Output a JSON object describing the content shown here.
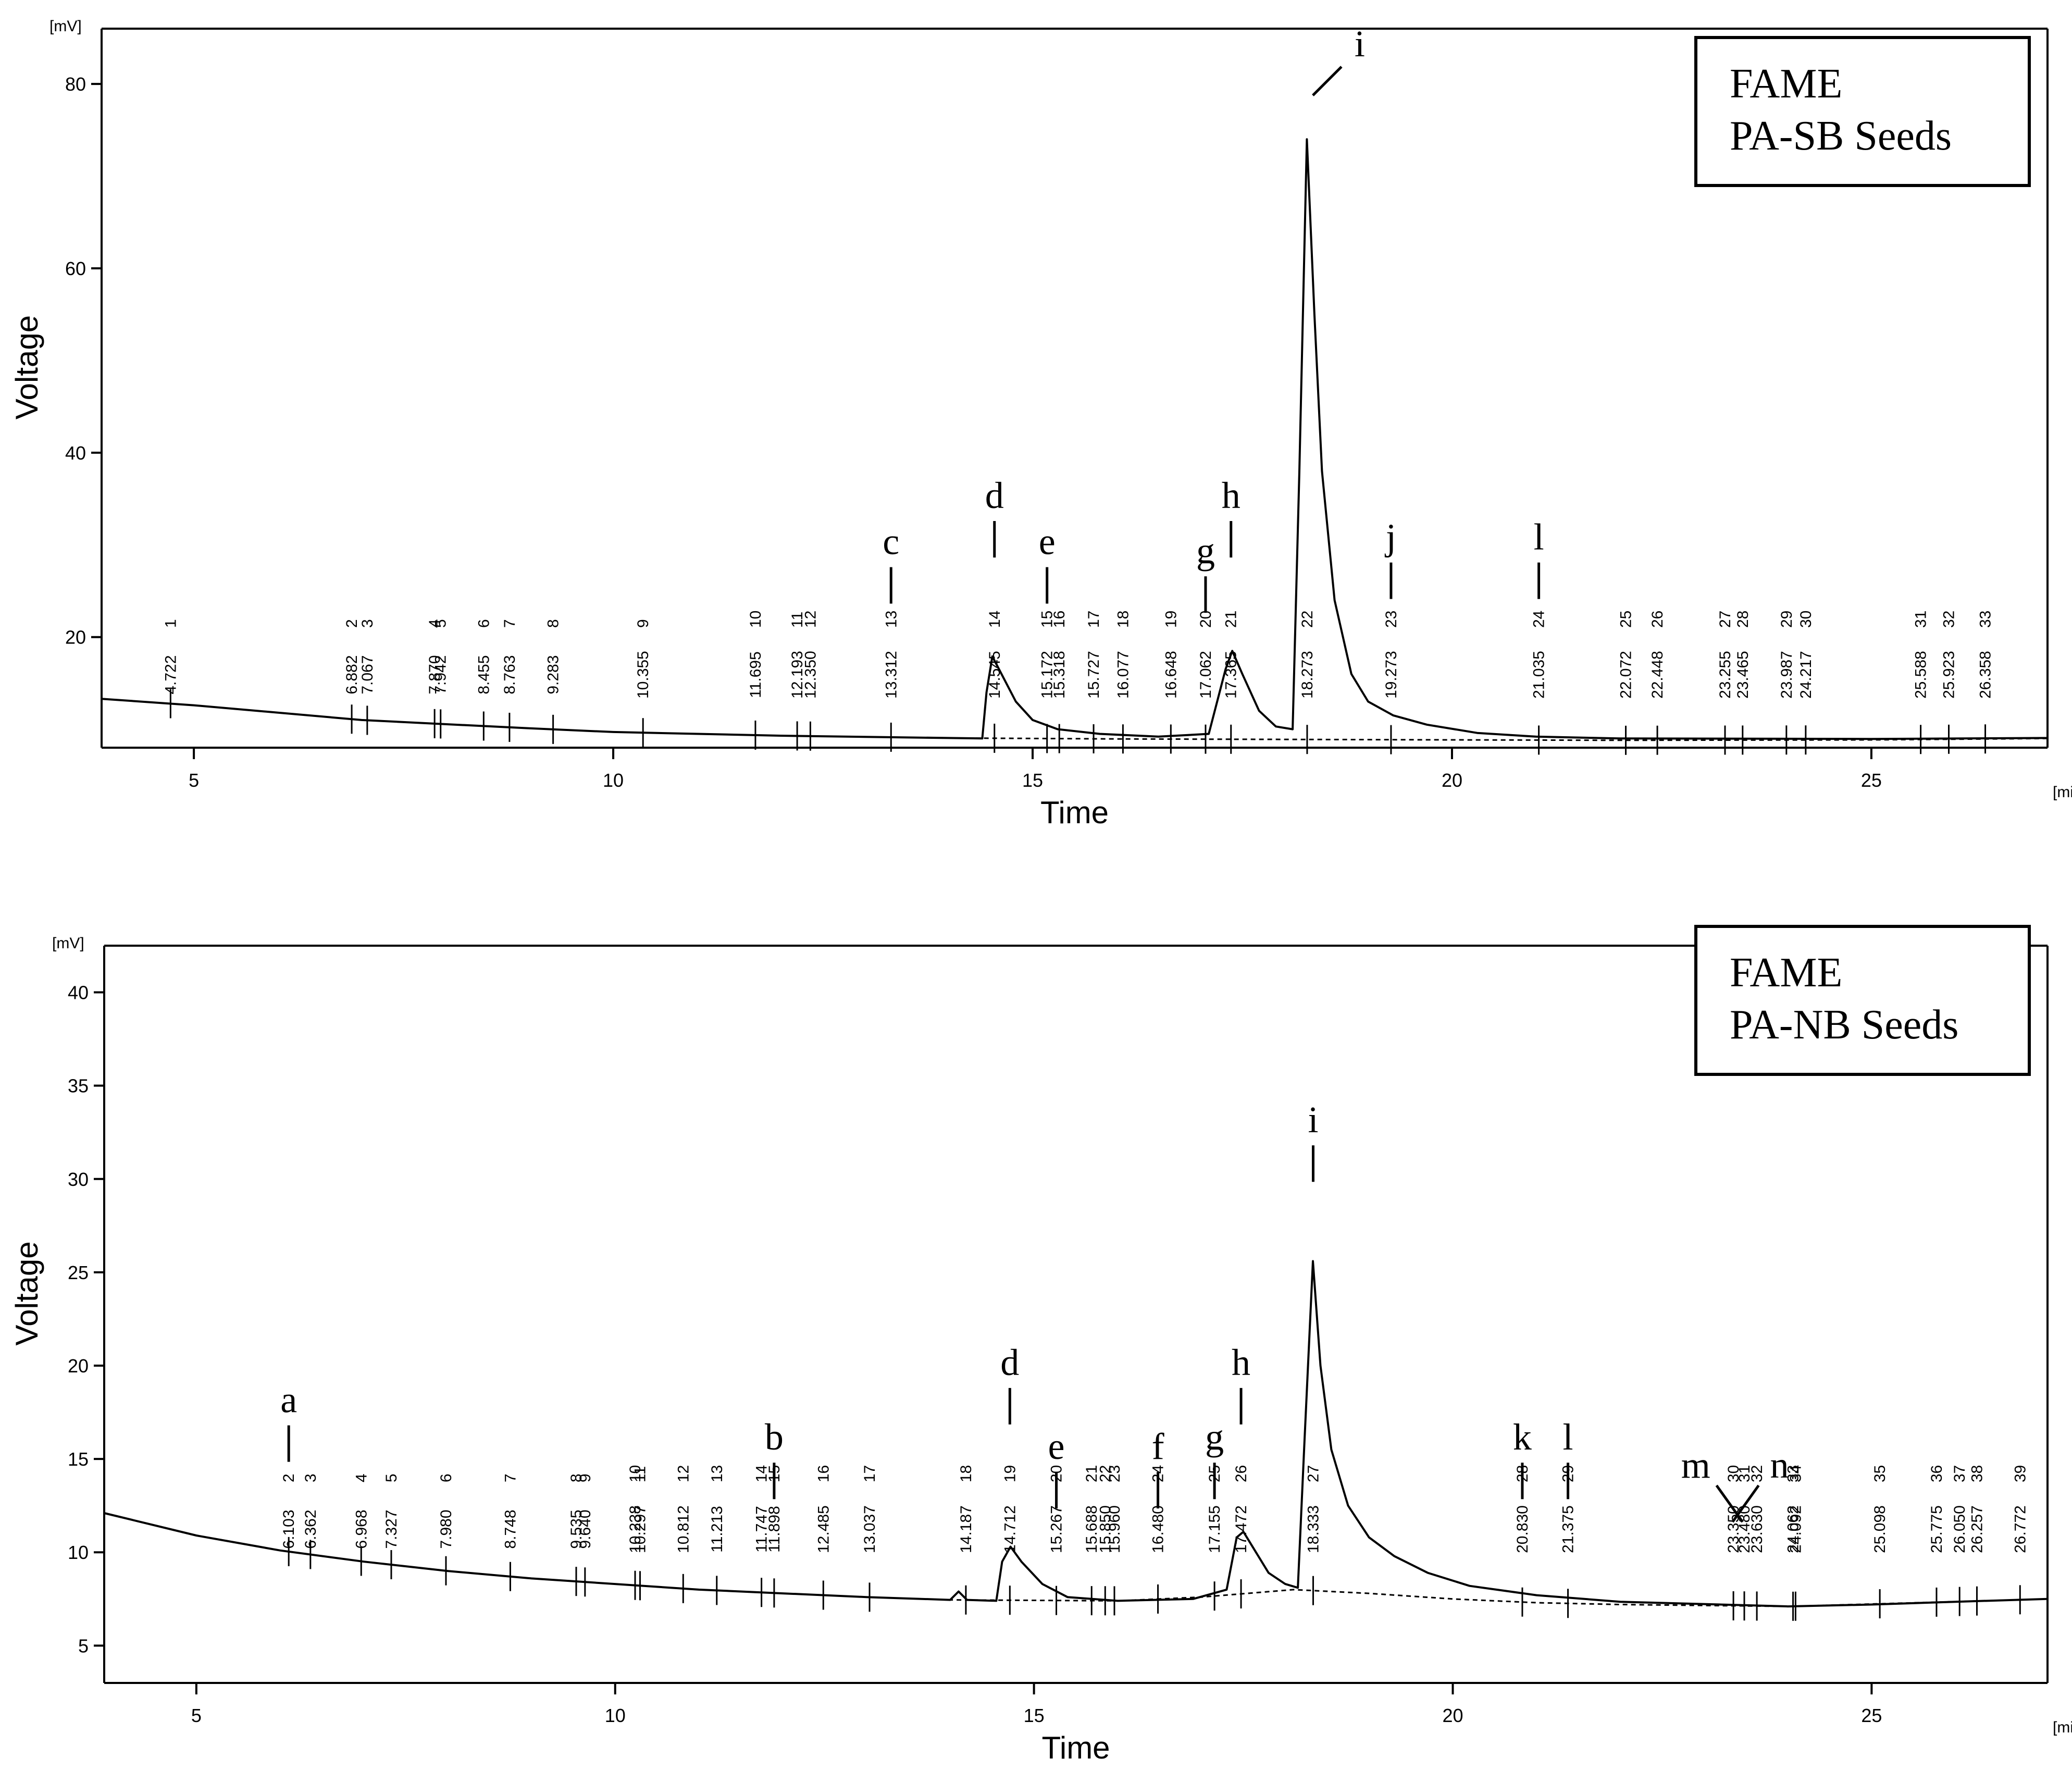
{
  "chart_data": [
    {
      "type": "line",
      "name": "chromatogram-pa-sb",
      "legend": {
        "line1": "FAME",
        "line2": "PA-SB Seeds"
      },
      "xlabel": "Time",
      "ylabel": "Voltage",
      "xunit": "[min.]",
      "yunit": "[mV]",
      "xlim": [
        3.9,
        27.1
      ],
      "ylim": [
        8,
        86
      ],
      "xticks": [
        5,
        10,
        15,
        20,
        25
      ],
      "yticks": [
        20,
        40,
        60,
        80
      ],
      "baseline": [
        [
          3.9,
          13.3
        ],
        [
          5,
          12.6
        ],
        [
          7,
          11.0
        ],
        [
          9,
          10.1
        ],
        [
          10,
          9.7
        ],
        [
          12,
          9.3
        ],
        [
          14,
          9.05
        ],
        [
          16,
          8.95
        ],
        [
          18,
          8.9
        ],
        [
          20,
          8.85
        ],
        [
          22,
          8.8
        ],
        [
          25,
          8.85
        ],
        [
          27.1,
          9.0
        ]
      ],
      "trace": [
        [
          3.9,
          13.3
        ],
        [
          5,
          12.6
        ],
        [
          7,
          11.0
        ],
        [
          9,
          10.1
        ],
        [
          10,
          9.7
        ],
        [
          12,
          9.3
        ],
        [
          14,
          9.05
        ],
        [
          14.4,
          9.0
        ],
        [
          14.45,
          14.0
        ],
        [
          14.52,
          17.9
        ],
        [
          14.6,
          16.5
        ],
        [
          14.8,
          13.0
        ],
        [
          15.0,
          11.0
        ],
        [
          15.3,
          10.0
        ],
        [
          15.8,
          9.5
        ],
        [
          16.5,
          9.2
        ],
        [
          17.1,
          9.5
        ],
        [
          17.3,
          16.5
        ],
        [
          17.38,
          18.5
        ],
        [
          17.5,
          16.0
        ],
        [
          17.7,
          12.0
        ],
        [
          17.9,
          10.3
        ],
        [
          18.1,
          10.0
        ],
        [
          18.18,
          38.0
        ],
        [
          18.27,
          74.0
        ],
        [
          18.36,
          55.0
        ],
        [
          18.45,
          38.0
        ],
        [
          18.6,
          24.0
        ],
        [
          18.8,
          16.0
        ],
        [
          19.0,
          13.0
        ],
        [
          19.3,
          11.5
        ],
        [
          19.7,
          10.5
        ],
        [
          20.3,
          9.6
        ],
        [
          21,
          9.2
        ],
        [
          22,
          9.0
        ],
        [
          25,
          8.95
        ],
        [
          27.1,
          9.05
        ]
      ],
      "peaks": [
        {
          "n": "1",
          "rt": "4.722",
          "x": 4.722
        },
        {
          "n": "2",
          "rt": "6.882",
          "x": 6.882
        },
        {
          "n": "3",
          "rt": "7.067",
          "x": 7.067
        },
        {
          "n": "4",
          "rt": "7.870",
          "x": 7.87
        },
        {
          "n": "5",
          "rt": "7.942",
          "x": 7.942
        },
        {
          "n": "6",
          "rt": "8.455",
          "x": 8.455
        },
        {
          "n": "7",
          "rt": "8.763",
          "x": 8.763
        },
        {
          "n": "8",
          "rt": "9.283",
          "x": 9.283
        },
        {
          "n": "9",
          "rt": "10.355",
          "x": 10.355
        },
        {
          "n": "10",
          "rt": "11.695",
          "x": 11.695
        },
        {
          "n": "11",
          "rt": "12.193",
          "x": 12.193
        },
        {
          "n": "12",
          "rt": "12.350",
          "x": 12.35
        },
        {
          "n": "13",
          "rt": "13.312",
          "x": 13.312
        },
        {
          "n": "14",
          "rt": "14.545",
          "x": 14.545
        },
        {
          "n": "15",
          "rt": "15.172",
          "x": 15.172
        },
        {
          "n": "16",
          "rt": "15.318",
          "x": 15.318
        },
        {
          "n": "17",
          "rt": "15.727",
          "x": 15.727
        },
        {
          "n": "18",
          "rt": "16.077",
          "x": 16.077
        },
        {
          "n": "19",
          "rt": "16.648",
          "x": 16.648
        },
        {
          "n": "20",
          "rt": "17.062",
          "x": 17.062
        },
        {
          "n": "21",
          "rt": "17.365",
          "x": 17.365
        },
        {
          "n": "22",
          "rt": "18.273",
          "x": 18.273
        },
        {
          "n": "23",
          "rt": "19.273",
          "x": 19.273
        },
        {
          "n": "24",
          "rt": "21.035",
          "x": 21.035
        },
        {
          "n": "25",
          "rt": "22.072",
          "x": 22.072
        },
        {
          "n": "26",
          "rt": "22.448",
          "x": 22.448
        },
        {
          "n": "27",
          "rt": "23.255",
          "x": 23.255
        },
        {
          "n": "28",
          "rt": "23.465",
          "x": 23.465
        },
        {
          "n": "29",
          "rt": "23.987",
          "x": 23.987
        },
        {
          "n": "30",
          "rt": "24.217",
          "x": 24.217
        },
        {
          "n": "31",
          "rt": "25.588",
          "x": 25.588
        },
        {
          "n": "32",
          "rt": "25.923",
          "x": 25.923
        },
        {
          "n": "33",
          "rt": "26.358",
          "x": 26.358
        }
      ],
      "letters": [
        {
          "t": "c",
          "x": 13.312,
          "y": 29
        },
        {
          "t": "d",
          "x": 14.545,
          "y": 34
        },
        {
          "t": "e",
          "x": 15.172,
          "y": 29
        },
        {
          "t": "g",
          "x": 17.062,
          "y": 28
        },
        {
          "t": "h",
          "x": 17.365,
          "y": 34
        },
        {
          "t": "i",
          "x": 18.9,
          "y": 83
        },
        {
          "t": "j",
          "x": 19.273,
          "y": 29.5
        },
        {
          "t": "l",
          "x": 21.035,
          "y": 29.5
        }
      ]
    },
    {
      "type": "line",
      "name": "chromatogram-pa-nb",
      "legend": {
        "line1": "FAME",
        "line2": "PA-NB Seeds"
      },
      "xlabel": "Time",
      "ylabel": "Voltage",
      "xunit": "[min.]",
      "yunit": "[mV]",
      "xlim": [
        3.9,
        27.1
      ],
      "ylim": [
        3,
        42.5
      ],
      "xticks": [
        5,
        10,
        15,
        20,
        25
      ],
      "yticks": [
        5,
        10,
        15,
        20,
        25,
        30,
        35,
        40
      ],
      "baseline": [
        [
          3.9,
          12.1
        ],
        [
          5,
          10.9
        ],
        [
          6,
          10.1
        ],
        [
          7,
          9.5
        ],
        [
          8,
          9.0
        ],
        [
          9,
          8.6
        ],
        [
          10,
          8.3
        ],
        [
          11,
          8.0
        ],
        [
          12,
          7.8
        ],
        [
          13,
          7.6
        ],
        [
          14,
          7.45
        ],
        [
          16,
          7.4
        ],
        [
          17,
          7.6
        ],
        [
          18.1,
          8.0
        ],
        [
          19,
          7.8
        ],
        [
          20,
          7.5
        ],
        [
          21,
          7.3
        ],
        [
          22,
          7.2
        ],
        [
          24,
          7.1
        ],
        [
          27.1,
          7.5
        ]
      ],
      "trace": [
        [
          3.9,
          12.1
        ],
        [
          5,
          10.9
        ],
        [
          6,
          10.1
        ],
        [
          7,
          9.5
        ],
        [
          8,
          9.0
        ],
        [
          9,
          8.6
        ],
        [
          10,
          8.3
        ],
        [
          11,
          8.0
        ],
        [
          12,
          7.8
        ],
        [
          13,
          7.6
        ],
        [
          14,
          7.45
        ],
        [
          14.1,
          7.9
        ],
        [
          14.2,
          7.45
        ],
        [
          14.55,
          7.4
        ],
        [
          14.62,
          9.5
        ],
        [
          14.72,
          10.3
        ],
        [
          14.85,
          9.5
        ],
        [
          15.1,
          8.3
        ],
        [
          15.4,
          7.6
        ],
        [
          16,
          7.4
        ],
        [
          16.9,
          7.5
        ],
        [
          17.3,
          8.0
        ],
        [
          17.42,
          10.8
        ],
        [
          17.5,
          11.1
        ],
        [
          17.65,
          10.0
        ],
        [
          17.8,
          8.9
        ],
        [
          18.0,
          8.3
        ],
        [
          18.15,
          8.1
        ],
        [
          18.23,
          16.0
        ],
        [
          18.33,
          25.6
        ],
        [
          18.42,
          20.0
        ],
        [
          18.55,
          15.5
        ],
        [
          18.75,
          12.5
        ],
        [
          19.0,
          10.8
        ],
        [
          19.3,
          9.8
        ],
        [
          19.7,
          8.9
        ],
        [
          20.2,
          8.2
        ],
        [
          21,
          7.7
        ],
        [
          22,
          7.35
        ],
        [
          24,
          7.1
        ],
        [
          25,
          7.2
        ],
        [
          26,
          7.35
        ],
        [
          27.1,
          7.5
        ]
      ],
      "peaks": [
        {
          "n": "2",
          "rt": "6.103",
          "x": 6.103
        },
        {
          "n": "3",
          "rt": "6.362",
          "x": 6.362
        },
        {
          "n": "4",
          "rt": "6.968",
          "x": 6.968
        },
        {
          "n": "5",
          "rt": "7.327",
          "x": 7.327
        },
        {
          "n": "6",
          "rt": "7.980",
          "x": 7.98
        },
        {
          "n": "7",
          "rt": "8.748",
          "x": 8.748
        },
        {
          "n": "8",
          "rt": "9.535",
          "x": 9.535
        },
        {
          "n": "9",
          "rt": "9.640",
          "x": 9.64
        },
        {
          "n": "10",
          "rt": "10.238",
          "x": 10.238
        },
        {
          "n": "11",
          "rt": "10.297",
          "x": 10.297
        },
        {
          "n": "12",
          "rt": "10.812",
          "x": 10.812
        },
        {
          "n": "13",
          "rt": "11.213",
          "x": 11.213
        },
        {
          "n": "14",
          "rt": "11.747",
          "x": 11.747
        },
        {
          "n": "15",
          "rt": "11.898",
          "x": 11.898
        },
        {
          "n": "16",
          "rt": "12.485",
          "x": 12.485
        },
        {
          "n": "17",
          "rt": "13.037",
          "x": 13.037
        },
        {
          "n": "18",
          "rt": "14.187",
          "x": 14.187
        },
        {
          "n": "19",
          "rt": "14.712",
          "x": 14.712
        },
        {
          "n": "20",
          "rt": "15.267",
          "x": 15.267
        },
        {
          "n": "21",
          "rt": "15.688",
          "x": 15.688
        },
        {
          "n": "22",
          "rt": "15.850",
          "x": 15.85
        },
        {
          "n": "23",
          "rt": "15.960",
          "x": 15.96
        },
        {
          "n": "24",
          "rt": "16.480",
          "x": 16.48
        },
        {
          "n": "25",
          "rt": "17.155",
          "x": 17.155
        },
        {
          "n": "26",
          "rt": "17.472",
          "x": 17.472
        },
        {
          "n": "27",
          "rt": "18.333",
          "x": 18.333
        },
        {
          "n": "28",
          "rt": "20.830",
          "x": 20.83
        },
        {
          "n": "29",
          "rt": "21.375",
          "x": 21.375
        },
        {
          "n": "30",
          "rt": "23.350",
          "x": 23.35
        },
        {
          "n": "31",
          "rt": "23.480",
          "x": 23.48
        },
        {
          "n": "32",
          "rt": "23.630",
          "x": 23.63
        },
        {
          "n": "33",
          "rt": "24.062",
          "x": 24.062
        },
        {
          "n": "34",
          "rt": "24.092",
          "x": 24.092
        },
        {
          "n": "35",
          "rt": "25.098",
          "x": 25.098
        },
        {
          "n": "36",
          "rt": "25.775",
          "x": 25.775
        },
        {
          "n": "37",
          "rt": "26.050",
          "x": 26.05
        },
        {
          "n": "38",
          "rt": "26.257",
          "x": 26.257
        },
        {
          "n": "39",
          "rt": "26.772",
          "x": 26.772
        }
      ],
      "letters": [
        {
          "t": "a",
          "x": 6.103,
          "y": 17.5
        },
        {
          "t": "b",
          "x": 11.898,
          "y": 15.5
        },
        {
          "t": "d",
          "x": 14.712,
          "y": 19.5
        },
        {
          "t": "e",
          "x": 15.267,
          "y": 15.0
        },
        {
          "t": "f",
          "x": 16.48,
          "y": 15.0
        },
        {
          "t": "g",
          "x": 17.155,
          "y": 15.5
        },
        {
          "t": "h",
          "x": 17.472,
          "y": 19.5
        },
        {
          "t": "i",
          "x": 18.333,
          "y": 32.5
        },
        {
          "t": "k",
          "x": 20.83,
          "y": 15.5
        },
        {
          "t": "l",
          "x": 21.375,
          "y": 15.5
        },
        {
          "t": "m",
          "x": 22.9,
          "y": 14.0
        },
        {
          "t": "n",
          "x": 23.9,
          "y": 14.0
        }
      ]
    }
  ]
}
